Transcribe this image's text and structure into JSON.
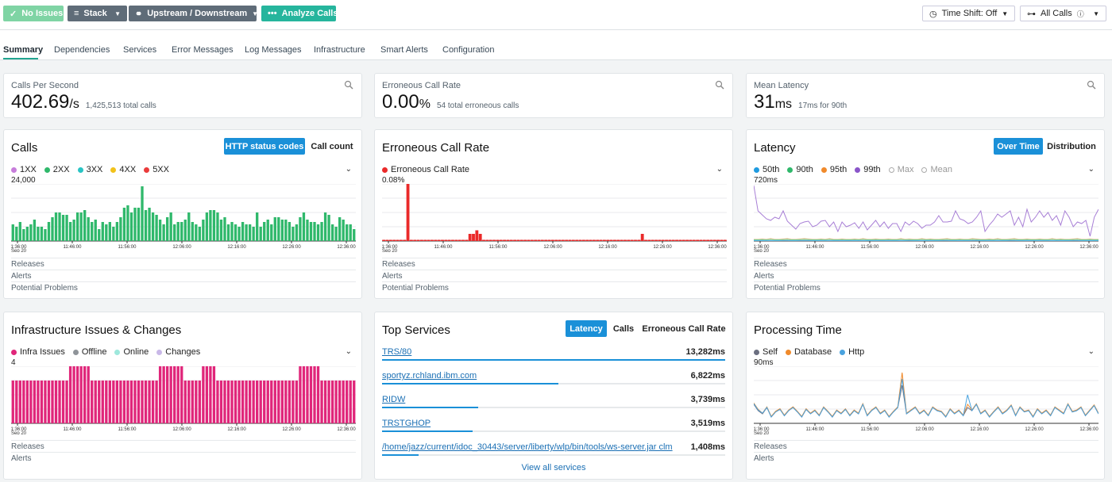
{
  "toolbar": {
    "no_issues": "No Issues",
    "stack": "Stack",
    "upstream": "Upstream / Downstream",
    "analyze": "Analyze Calls",
    "time_shift": "Time Shift: Off",
    "all_calls": "All Calls"
  },
  "tabs": [
    "Summary",
    "Dependencies",
    "Services",
    "Error Messages",
    "Log Messages",
    "Infrastructure",
    "Smart Alerts",
    "Configuration"
  ],
  "stats": {
    "cps": {
      "label": "Calls Per Second",
      "value": "402.69",
      "unit": "/s",
      "sub": "1,425,513 total calls"
    },
    "ecr": {
      "label": "Erroneous Call Rate",
      "value": "0.00",
      "unit": "%",
      "sub": "54 total erroneous calls"
    },
    "lat": {
      "label": "Mean Latency",
      "value": "31",
      "unit": "ms",
      "sub": "17ms for 90th"
    }
  },
  "x_ticks": [
    "11:36:00",
    "11:46:00",
    "11:56:00",
    "12:06:00",
    "12:16:00",
    "12:26:00",
    "12:36:00"
  ],
  "x_date": "Sep 20",
  "sub_rows": {
    "releases": "Releases",
    "alerts": "Alerts",
    "problems": "Potential Problems"
  },
  "calls": {
    "title": "Calls",
    "btn_on": "HTTP status codes",
    "btn_off": "Call count",
    "ymax": "24,000",
    "legend": [
      {
        "name": "1XX",
        "color": "#c77ddb"
      },
      {
        "name": "2XX",
        "color": "#2fb86b"
      },
      {
        "name": "3XX",
        "color": "#29c4c4"
      },
      {
        "name": "4XX",
        "color": "#f2c21a"
      },
      {
        "name": "5XX",
        "color": "#ea3b3b"
      }
    ]
  },
  "erroneous": {
    "title": "Erroneous Call Rate",
    "ymax": "0.08%",
    "legend": [
      {
        "name": "Erroneous Call Rate",
        "color": "#ea2a2a"
      }
    ]
  },
  "latency": {
    "title": "Latency",
    "btn_on": "Over Time",
    "btn_off": "Distribution",
    "ymax": "720ms",
    "legend": [
      {
        "name": "50th",
        "color": "#1f9be0"
      },
      {
        "name": "90th",
        "color": "#2fb86b"
      },
      {
        "name": "95th",
        "color": "#f08a2b"
      },
      {
        "name": "99th",
        "color": "#8a55c9"
      },
      {
        "name": "Max",
        "color": "",
        "hollow": true
      },
      {
        "name": "Mean",
        "color": "",
        "hollow": true
      }
    ]
  },
  "infra": {
    "title": "Infrastructure Issues & Changes",
    "ymax": "4",
    "legend": [
      {
        "name": "Infra Issues",
        "color": "#e0267a"
      },
      {
        "name": "Offline",
        "color": "#8f9499"
      },
      {
        "name": "Online",
        "color": "#9ee8dc"
      },
      {
        "name": "Changes",
        "color": "#c9b8e8"
      }
    ]
  },
  "top_services": {
    "title": "Top Services",
    "btn_on": "Latency",
    "btn_mid": "Calls",
    "btn_off": "Erroneous Call Rate",
    "view_all": "View all services",
    "items": [
      {
        "name": "TRS/80",
        "value": "13,282ms",
        "fraction": 1.0
      },
      {
        "name": "sportyz.rchland.ibm.com",
        "value": "6,822ms",
        "fraction": 0.514
      },
      {
        "name": "RIDW",
        "value": "3,739ms",
        "fraction": 0.28
      },
      {
        "name": "TRSTGHOP",
        "value": "3,519ms",
        "fraction": 0.265
      },
      {
        "name": "/home/jazz/current/idoc_30443/server/liberty/wlp/bin/tools/ws-server.jar clm",
        "value": "1,408ms",
        "fraction": 0.106
      }
    ]
  },
  "processing": {
    "title": "Processing Time",
    "ymax": "90ms",
    "legend": [
      {
        "name": "Self",
        "color": "#6b6f80"
      },
      {
        "name": "Database",
        "color": "#f08a2b"
      },
      {
        "name": "Http",
        "color": "#4aa3df"
      }
    ]
  },
  "chart_data": [
    {
      "type": "bar",
      "title": "Calls",
      "ylim": [
        0,
        24000
      ],
      "series": [
        {
          "name": "2XX",
          "values": [
            7000,
            6000,
            8000,
            5000,
            6000,
            7000,
            9000,
            6000,
            6000,
            5000,
            8000,
            10000,
            12000,
            12000,
            11000,
            11000,
            8000,
            9000,
            12000,
            12000,
            13000,
            10000,
            8000,
            9000,
            5000,
            8000,
            7000,
            8000,
            6000,
            8000,
            10000,
            14000,
            15000,
            12000,
            14000,
            14000,
            23000,
            13000,
            14000,
            12000,
            11000,
            9000,
            7000,
            10000,
            12000,
            7000,
            8000,
            8000,
            9000,
            12000,
            8000,
            7000,
            6000,
            9000,
            12000,
            13000,
            13000,
            12000,
            9000,
            10000,
            7000,
            8000,
            7000,
            6000,
            8000,
            7000,
            7000,
            6000,
            12000,
            6000,
            8000,
            9000,
            7000,
            10000,
            10000,
            9000,
            9000,
            8000,
            6000,
            7000,
            10000,
            12000,
            9000,
            8000,
            8000,
            7000,
            8000,
            12000,
            11000,
            7000,
            6000,
            10000,
            9000,
            7000,
            7000,
            5000
          ]
        }
      ]
    },
    {
      "type": "bar",
      "title": "Erroneous Call Rate",
      "ylim": [
        0,
        0.08
      ],
      "series": [
        {
          "name": "Erroneous Call Rate",
          "values": [
            0,
            0,
            0,
            0,
            0,
            0,
            0,
            0.08,
            0,
            0,
            0,
            0,
            0,
            0,
            0,
            0,
            0,
            0,
            0,
            0,
            0,
            0,
            0,
            0,
            0,
            0.01,
            0.01,
            0.015,
            0.01,
            0,
            0,
            0,
            0,
            0,
            0,
            0,
            0,
            0,
            0,
            0,
            0,
            0,
            0,
            0,
            0,
            0,
            0,
            0,
            0,
            0,
            0,
            0,
            0,
            0,
            0,
            0,
            0,
            0,
            0,
            0,
            0,
            0,
            0,
            0,
            0,
            0,
            0,
            0,
            0,
            0,
            0,
            0,
            0,
            0,
            0,
            0.01,
            0,
            0,
            0,
            0,
            0,
            0,
            0,
            0,
            0,
            0,
            0,
            0,
            0,
            0,
            0,
            0,
            0,
            0,
            0,
            0,
            0,
            0,
            0,
            0
          ]
        }
      ]
    },
    {
      "type": "line",
      "title": "Latency",
      "ylim": [
        0,
        720
      ],
      "series": [
        {
          "name": "99th",
          "values": [
            700,
            380,
            330,
            280,
            260,
            300,
            280,
            380,
            250,
            200,
            150,
            220,
            240,
            250,
            180,
            200,
            250,
            260,
            180,
            240,
            120,
            240,
            180,
            200,
            230,
            160,
            240,
            140,
            200,
            260,
            180,
            240,
            160,
            220,
            220,
            120,
            240,
            200,
            250,
            220,
            160,
            200,
            200,
            240,
            320,
            240,
            240,
            250,
            380,
            280,
            260,
            220,
            240,
            300,
            380,
            120,
            200,
            260,
            340,
            300,
            340,
            380,
            200,
            300,
            180,
            400,
            240,
            300,
            380,
            300,
            360,
            260,
            320,
            200,
            380,
            300,
            180,
            240,
            220,
            260,
            60,
            300,
            400
          ]
        },
        {
          "name": "95th",
          "values": [
            20,
            20,
            25,
            20,
            30,
            20,
            20,
            25,
            30,
            20,
            20,
            25,
            30,
            25,
            20,
            20,
            25,
            20,
            30,
            20,
            20,
            25,
            20,
            20,
            25,
            20,
            30,
            20,
            20,
            25,
            20,
            20,
            25,
            20,
            20,
            30,
            20,
            25,
            20,
            20,
            30,
            20,
            25,
            20,
            20,
            25,
            30,
            20,
            20,
            25,
            20,
            20,
            30,
            25,
            20,
            20,
            25,
            20,
            30,
            20,
            20,
            25,
            30,
            20,
            20,
            25,
            20,
            20,
            25,
            20,
            20,
            30,
            20,
            25,
            20,
            20,
            25,
            30,
            20,
            20,
            25,
            20,
            20
          ]
        },
        {
          "name": "90th",
          "values": [
            15,
            15,
            18,
            15,
            20,
            15,
            15,
            18,
            20,
            15,
            15,
            18,
            20,
            18,
            15,
            15,
            18,
            15,
            20,
            15,
            15,
            18,
            15,
            15,
            18,
            15,
            20,
            15,
            15,
            18,
            15,
            15,
            18,
            15,
            15,
            20,
            15,
            18,
            15,
            15,
            20,
            15,
            18,
            15,
            15,
            18,
            20,
            15,
            15,
            18,
            15,
            15,
            20,
            18,
            15,
            15,
            18,
            15,
            20,
            15,
            15,
            18,
            20,
            15,
            15,
            18,
            15,
            15,
            18,
            15,
            15,
            20,
            15,
            18,
            15,
            15,
            18,
            20,
            15,
            15,
            18,
            15,
            15
          ]
        },
        {
          "name": "50th",
          "values": [
            5,
            5,
            6,
            5,
            6,
            5,
            5,
            6,
            6,
            5,
            5,
            6,
            6,
            6,
            5,
            5,
            6,
            5,
            6,
            5,
            5,
            6,
            5,
            5,
            6,
            5,
            6,
            5,
            5,
            6,
            5,
            5,
            6,
            5,
            5,
            6,
            5,
            6,
            5,
            5,
            6,
            5,
            6,
            5,
            5,
            6,
            6,
            5,
            5,
            6,
            5,
            5,
            6,
            6,
            5,
            5,
            6,
            5,
            6,
            5,
            5,
            6,
            6,
            5,
            5,
            6,
            5,
            5,
            6,
            5,
            5,
            6,
            5,
            6,
            5,
            5,
            6,
            6,
            5,
            5,
            6,
            5,
            5
          ]
        }
      ]
    },
    {
      "type": "bar",
      "title": "Infrastructure Issues & Changes",
      "ylim": [
        0,
        4
      ],
      "series": [
        {
          "name": "Infra Issues",
          "values": [
            3,
            3,
            3,
            3,
            3,
            3,
            3,
            3,
            3,
            3,
            3,
            3,
            3,
            3,
            3,
            3,
            4,
            4,
            4,
            4,
            4,
            4,
            3,
            3,
            3,
            3,
            3,
            3,
            3,
            3,
            3,
            3,
            3,
            3,
            3,
            3,
            3,
            3,
            3,
            3,
            3,
            4,
            4,
            4,
            4,
            4,
            4,
            4,
            3,
            3,
            3,
            3,
            3,
            4,
            4,
            4,
            4,
            3,
            3,
            3,
            3,
            3,
            3,
            3,
            3,
            3,
            3,
            3,
            3,
            3,
            3,
            3,
            3,
            3,
            3,
            3,
            3,
            3,
            3,
            3,
            4,
            4,
            4,
            4,
            4,
            4,
            3,
            3,
            3,
            3,
            3,
            3,
            3,
            3,
            3,
            3
          ]
        }
      ]
    },
    {
      "type": "bar",
      "title": "Top Services",
      "categories": [
        "TRS/80",
        "sportyz.rchland.ibm.com",
        "RIDW",
        "TRSTGHOP",
        "/home/jazz/current/idoc_30443/server/liberty/wlp/bin/tools/ws-server.jar clm"
      ],
      "values": [
        13282,
        6822,
        3739,
        3519,
        1408
      ]
    },
    {
      "type": "line",
      "title": "Processing Time",
      "ylim": [
        0,
        90
      ],
      "series": [
        {
          "name": "Self",
          "values": [
            30,
            20,
            15,
            25,
            10,
            18,
            22,
            12,
            20,
            25,
            18,
            10,
            22,
            15,
            20,
            12,
            25,
            18,
            10,
            20,
            15,
            22,
            12,
            20,
            15,
            30,
            12,
            20,
            25,
            15,
            20,
            10,
            18,
            25,
            60,
            15,
            20,
            25,
            15,
            20,
            12,
            25,
            20,
            18,
            10,
            22,
            15,
            20,
            12,
            25,
            20,
            30,
            15,
            20,
            10,
            18,
            25,
            15,
            20,
            28,
            12,
            25,
            18,
            20,
            10,
            22,
            15,
            20,
            12,
            25,
            20,
            15,
            30,
            18,
            20,
            25,
            12,
            20,
            28,
            15
          ]
        },
        {
          "name": "Database",
          "values": [
            32,
            22,
            16,
            26,
            11,
            19,
            23,
            13,
            21,
            26,
            19,
            11,
            23,
            16,
            21,
            13,
            26,
            19,
            11,
            21,
            16,
            23,
            13,
            21,
            16,
            31,
            13,
            21,
            26,
            16,
            21,
            11,
            19,
            26,
            80,
            16,
            21,
            26,
            16,
            21,
            13,
            26,
            21,
            19,
            11,
            23,
            16,
            21,
            13,
            30,
            21,
            31,
            16,
            21,
            11,
            19,
            26,
            16,
            21,
            29,
            13,
            26,
            19,
            21,
            11,
            23,
            16,
            21,
            13,
            26,
            21,
            16,
            31,
            19,
            21,
            26,
            13,
            21,
            29,
            16
          ]
        },
        {
          "name": "Http",
          "values": [
            31,
            21,
            16,
            25,
            10,
            18,
            22,
            12,
            20,
            25,
            18,
            10,
            22,
            15,
            20,
            12,
            25,
            18,
            10,
            20,
            15,
            22,
            12,
            20,
            15,
            30,
            12,
            20,
            25,
            15,
            20,
            10,
            18,
            25,
            70,
            15,
            20,
            25,
            15,
            20,
            12,
            25,
            20,
            18,
            10,
            22,
            15,
            20,
            12,
            45,
            20,
            30,
            15,
            20,
            10,
            18,
            25,
            15,
            20,
            28,
            12,
            25,
            18,
            20,
            10,
            22,
            15,
            20,
            12,
            25,
            20,
            15,
            30,
            18,
            20,
            25,
            12,
            20,
            28,
            15
          ]
        }
      ]
    }
  ]
}
